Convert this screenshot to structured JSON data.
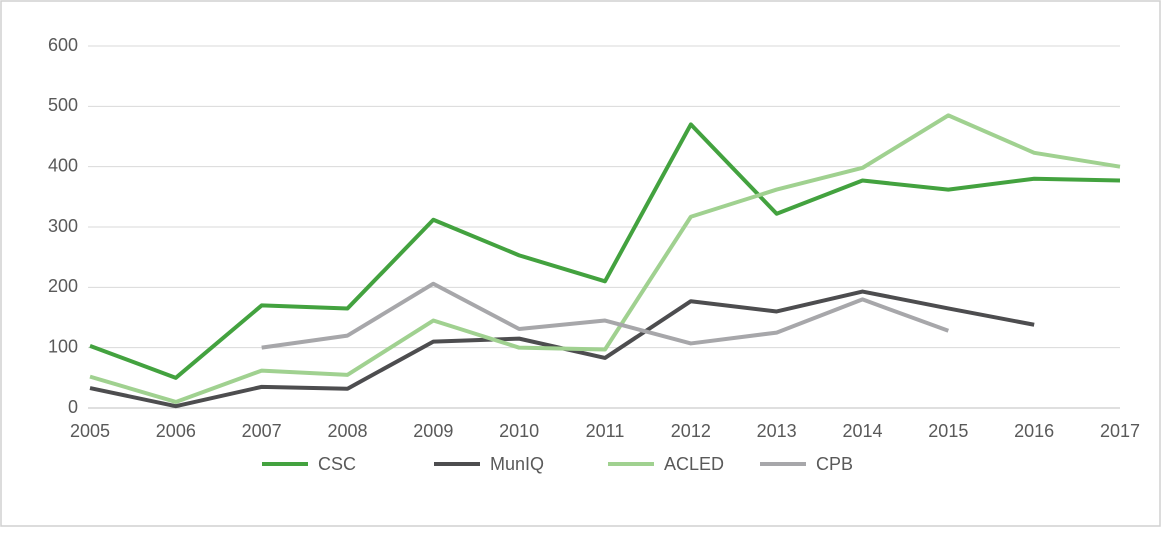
{
  "chart_data": {
    "type": "line",
    "categories": [
      "2005",
      "2006",
      "2007",
      "2008",
      "2009",
      "2010",
      "2011",
      "2012",
      "2013",
      "2014",
      "2015",
      "2016",
      "2017"
    ],
    "series": [
      {
        "name": "CSC",
        "color": "#43a23f",
        "values": [
          103,
          50,
          170,
          165,
          312,
          253,
          210,
          470,
          322,
          377,
          362,
          380,
          377
        ]
      },
      {
        "name": "MunIQ",
        "color": "#4d4d4f",
        "values": [
          33,
          3,
          35,
          32,
          110,
          115,
          83,
          177,
          160,
          193,
          165,
          138,
          null
        ]
      },
      {
        "name": "ACLED",
        "color": "#a0d190",
        "values": [
          52,
          10,
          62,
          55,
          145,
          100,
          97,
          317,
          362,
          398,
          485,
          423,
          400
        ]
      },
      {
        "name": "CPB",
        "color": "#a7a7aa",
        "values": [
          null,
          null,
          100,
          120,
          206,
          131,
          145,
          107,
          125,
          180,
          128,
          null,
          null
        ]
      }
    ],
    "ylim": [
      0,
      600
    ],
    "yticks": [
      0,
      100,
      200,
      300,
      400,
      500,
      600
    ],
    "grid": true,
    "legend": "bottom"
  }
}
